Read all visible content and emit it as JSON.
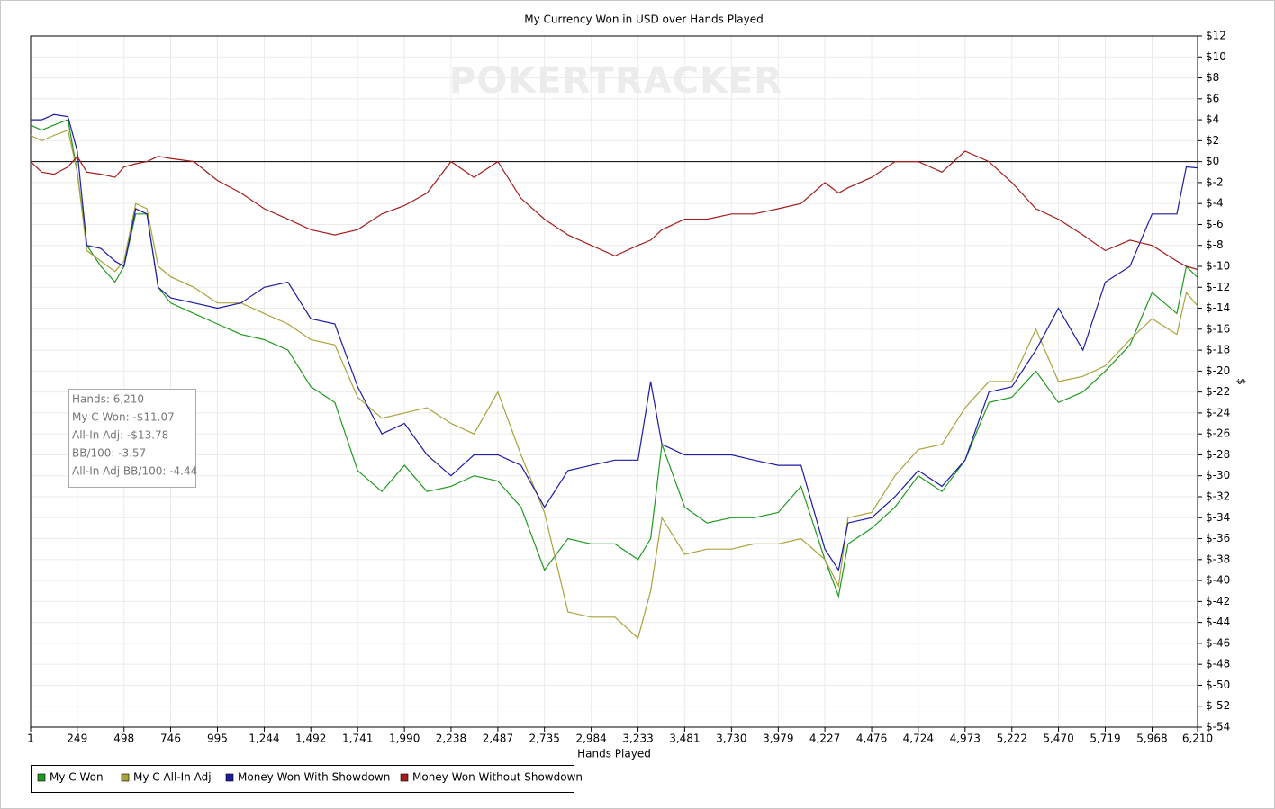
{
  "chart_data": {
    "type": "line",
    "title": "My Currency Won in USD over Hands Played",
    "xlabel": "Hands Played",
    "ylabel": "$",
    "watermark": "POKERTRACKER",
    "annotations": [
      "Hands: 6,210",
      "My C Won: -$11.07",
      "All-In Adj: -$13.78",
      "BB/100: -3.57",
      "All-In Adj BB/100: -4.44"
    ],
    "grid": true,
    "legend": "bottom",
    "xlim": [
      1,
      6210
    ],
    "xticks": [
      1,
      249,
      498,
      746,
      995,
      {
        "value": 1244,
        "label": "1,244"
      },
      {
        "value": 1492,
        "label": "1,492"
      },
      {
        "value": 1741,
        "label": "1,741"
      },
      {
        "value": 1990,
        "label": "1,990"
      },
      {
        "value": 2238,
        "label": "2,238"
      },
      {
        "value": 2487,
        "label": "2,487"
      },
      {
        "value": 2735,
        "label": "2,735"
      },
      {
        "value": 2984,
        "label": "2,984"
      },
      {
        "value": 3233,
        "label": "3,233"
      },
      {
        "value": 3481,
        "label": "3,481"
      },
      {
        "value": 3730,
        "label": "3,730"
      },
      {
        "value": 3979,
        "label": "3,979"
      },
      {
        "value": 4227,
        "label": "4,227"
      },
      {
        "value": 4476,
        "label": "4,476"
      },
      {
        "value": 4724,
        "label": "4,724"
      },
      {
        "value": 4973,
        "label": "4,973"
      },
      {
        "value": 5222,
        "label": "5,222"
      },
      {
        "value": 5470,
        "label": "5,470"
      },
      {
        "value": 5719,
        "label": "5,719"
      },
      {
        "value": 5968,
        "label": "5,968"
      },
      {
        "value": 6210,
        "label": "6,210"
      }
    ],
    "ylim": [
      -54,
      12
    ],
    "yticks": [
      {
        "value": 12,
        "label": "$12"
      },
      {
        "value": 10,
        "label": "$10"
      },
      {
        "value": 8,
        "label": "$8"
      },
      {
        "value": 6,
        "label": "$6"
      },
      {
        "value": 4,
        "label": "$4"
      },
      {
        "value": 2,
        "label": "$2"
      },
      {
        "value": 0,
        "label": "$0"
      },
      {
        "value": -2,
        "label": "$-2"
      },
      {
        "value": -4,
        "label": "$-4"
      },
      {
        "value": -6,
        "label": "$-6"
      },
      {
        "value": -8,
        "label": "$-8"
      },
      {
        "value": -10,
        "label": "$-10"
      },
      {
        "value": -12,
        "label": "$-12"
      },
      {
        "value": -14,
        "label": "$-14"
      },
      {
        "value": -16,
        "label": "$-16"
      },
      {
        "value": -18,
        "label": "$-18"
      },
      {
        "value": -20,
        "label": "$-20"
      },
      {
        "value": -22,
        "label": "$-22"
      },
      {
        "value": -24,
        "label": "$-24"
      },
      {
        "value": -26,
        "label": "$-26"
      },
      {
        "value": -28,
        "label": "$-28"
      },
      {
        "value": -30,
        "label": "$-30"
      },
      {
        "value": -32,
        "label": "$-32"
      },
      {
        "value": -34,
        "label": "$-34"
      },
      {
        "value": -36,
        "label": "$-36"
      },
      {
        "value": -38,
        "label": "$-38"
      },
      {
        "value": -40,
        "label": "$-40"
      },
      {
        "value": -42,
        "label": "$-42"
      },
      {
        "value": -44,
        "label": "$-44"
      },
      {
        "value": -46,
        "label": "$-46"
      },
      {
        "value": -48,
        "label": "$-48"
      },
      {
        "value": -50,
        "label": "$-50"
      },
      {
        "value": -52,
        "label": "$-52"
      },
      {
        "value": -54,
        "label": "$-54"
      }
    ],
    "x": [
      1,
      60,
      125,
      200,
      249,
      300,
      375,
      450,
      498,
      560,
      620,
      680,
      746,
      870,
      995,
      1120,
      1244,
      1370,
      1492,
      1620,
      1741,
      1870,
      1990,
      2110,
      2238,
      2360,
      2487,
      2610,
      2735,
      2860,
      2984,
      3110,
      3233,
      3300,
      3360,
      3481,
      3600,
      3730,
      3850,
      3979,
      4100,
      4227,
      4300,
      4350,
      4476,
      4600,
      4724,
      4850,
      4973,
      5100,
      5222,
      5350,
      5470,
      5600,
      5719,
      5850,
      5968,
      6100,
      6150,
      6210
    ],
    "series": [
      {
        "name": "My C Won",
        "color": "#1f9a1f",
        "values": [
          3.5,
          3,
          3.5,
          4,
          -1,
          -8,
          -10,
          -11.5,
          -10,
          -5,
          -5,
          -12,
          -13.5,
          -14.5,
          -15.5,
          -16.5,
          -17,
          -18,
          -21.5,
          -23,
          -29.5,
          -31.5,
          -29,
          -31.5,
          -31,
          -30,
          -30.5,
          -33,
          -39,
          -36,
          -36.5,
          -36.5,
          -38,
          -36,
          -27,
          -33,
          -34.5,
          -34,
          -34,
          -33.5,
          -31,
          -38,
          -41.5,
          -36.5,
          -35,
          -33,
          -30,
          -31.5,
          -28.5,
          -23,
          -22.5,
          -20,
          -23,
          -22,
          -20,
          -17.5,
          -12.5,
          -14.5,
          -10,
          -11.07
        ]
      },
      {
        "name": "My C All-In Adj",
        "color": "#a9a23c",
        "values": [
          2.5,
          2,
          2.5,
          3,
          -1,
          -8.5,
          -9.5,
          -10.5,
          -9.5,
          -4,
          -4.5,
          -10,
          -11,
          -12,
          -13.5,
          -13.5,
          -14.5,
          -15.5,
          -17,
          -17.5,
          -22.5,
          -24.5,
          -24,
          -23.5,
          -25,
          -26,
          -22,
          -28,
          -33.5,
          -43,
          -43.5,
          -43.5,
          -45.5,
          -41,
          -34,
          -37.5,
          -37,
          -37,
          -36.5,
          -36.5,
          -36,
          -38,
          -40.5,
          -34,
          -33.5,
          -30,
          -27.5,
          -27,
          -23.5,
          -21,
          -21,
          -16,
          -21,
          -20.5,
          -19.5,
          -17,
          -15,
          -16.5,
          -12.5,
          -13.78
        ]
      },
      {
        "name": "Money Won With Showdown",
        "color": "#1c1ca3",
        "values": [
          4,
          4,
          4.5,
          4.3,
          1,
          -8,
          -8.3,
          -9.5,
          -10,
          -4.5,
          -5,
          -12,
          -13,
          -13.5,
          -14,
          -13.5,
          -12,
          -11.5,
          -15,
          -15.5,
          -21.5,
          -26,
          -25,
          -28,
          -30,
          -28,
          -28,
          -29,
          -33,
          -29.5,
          -29,
          -28.5,
          -28.5,
          -21,
          -27,
          -28,
          -28,
          -28,
          -28.5,
          -29,
          -29,
          -37,
          -39,
          -34.5,
          -34,
          -32,
          -29.5,
          -31,
          -28.5,
          -22,
          -21.5,
          -18,
          -14,
          -18,
          -11.5,
          -10,
          -5,
          -5,
          -0.5,
          -0.6
        ]
      },
      {
        "name": "Money Won Without Showdown",
        "color": "#a31c1c",
        "values": [
          0,
          -1,
          -1.2,
          -0.5,
          0.5,
          -1,
          -1.2,
          -1.5,
          -0.5,
          -0.2,
          0,
          0.5,
          0.3,
          0,
          -1.8,
          -3,
          -4.5,
          -5.5,
          -6.5,
          -7,
          -6.5,
          -5,
          -4.2,
          -3,
          0,
          -1.5,
          0,
          -3.5,
          -5.5,
          -7,
          -8,
          -9,
          -8,
          -7.5,
          -6.5,
          -5.5,
          -5.5,
          -5,
          -5,
          -4.5,
          -4,
          -2,
          -3,
          -2.5,
          -1.5,
          0,
          0,
          -1,
          1,
          0,
          -2,
          -4.5,
          -5.5,
          -7,
          -8.5,
          -7.5,
          -8,
          -9.5,
          -10,
          -10.3
        ]
      }
    ]
  }
}
